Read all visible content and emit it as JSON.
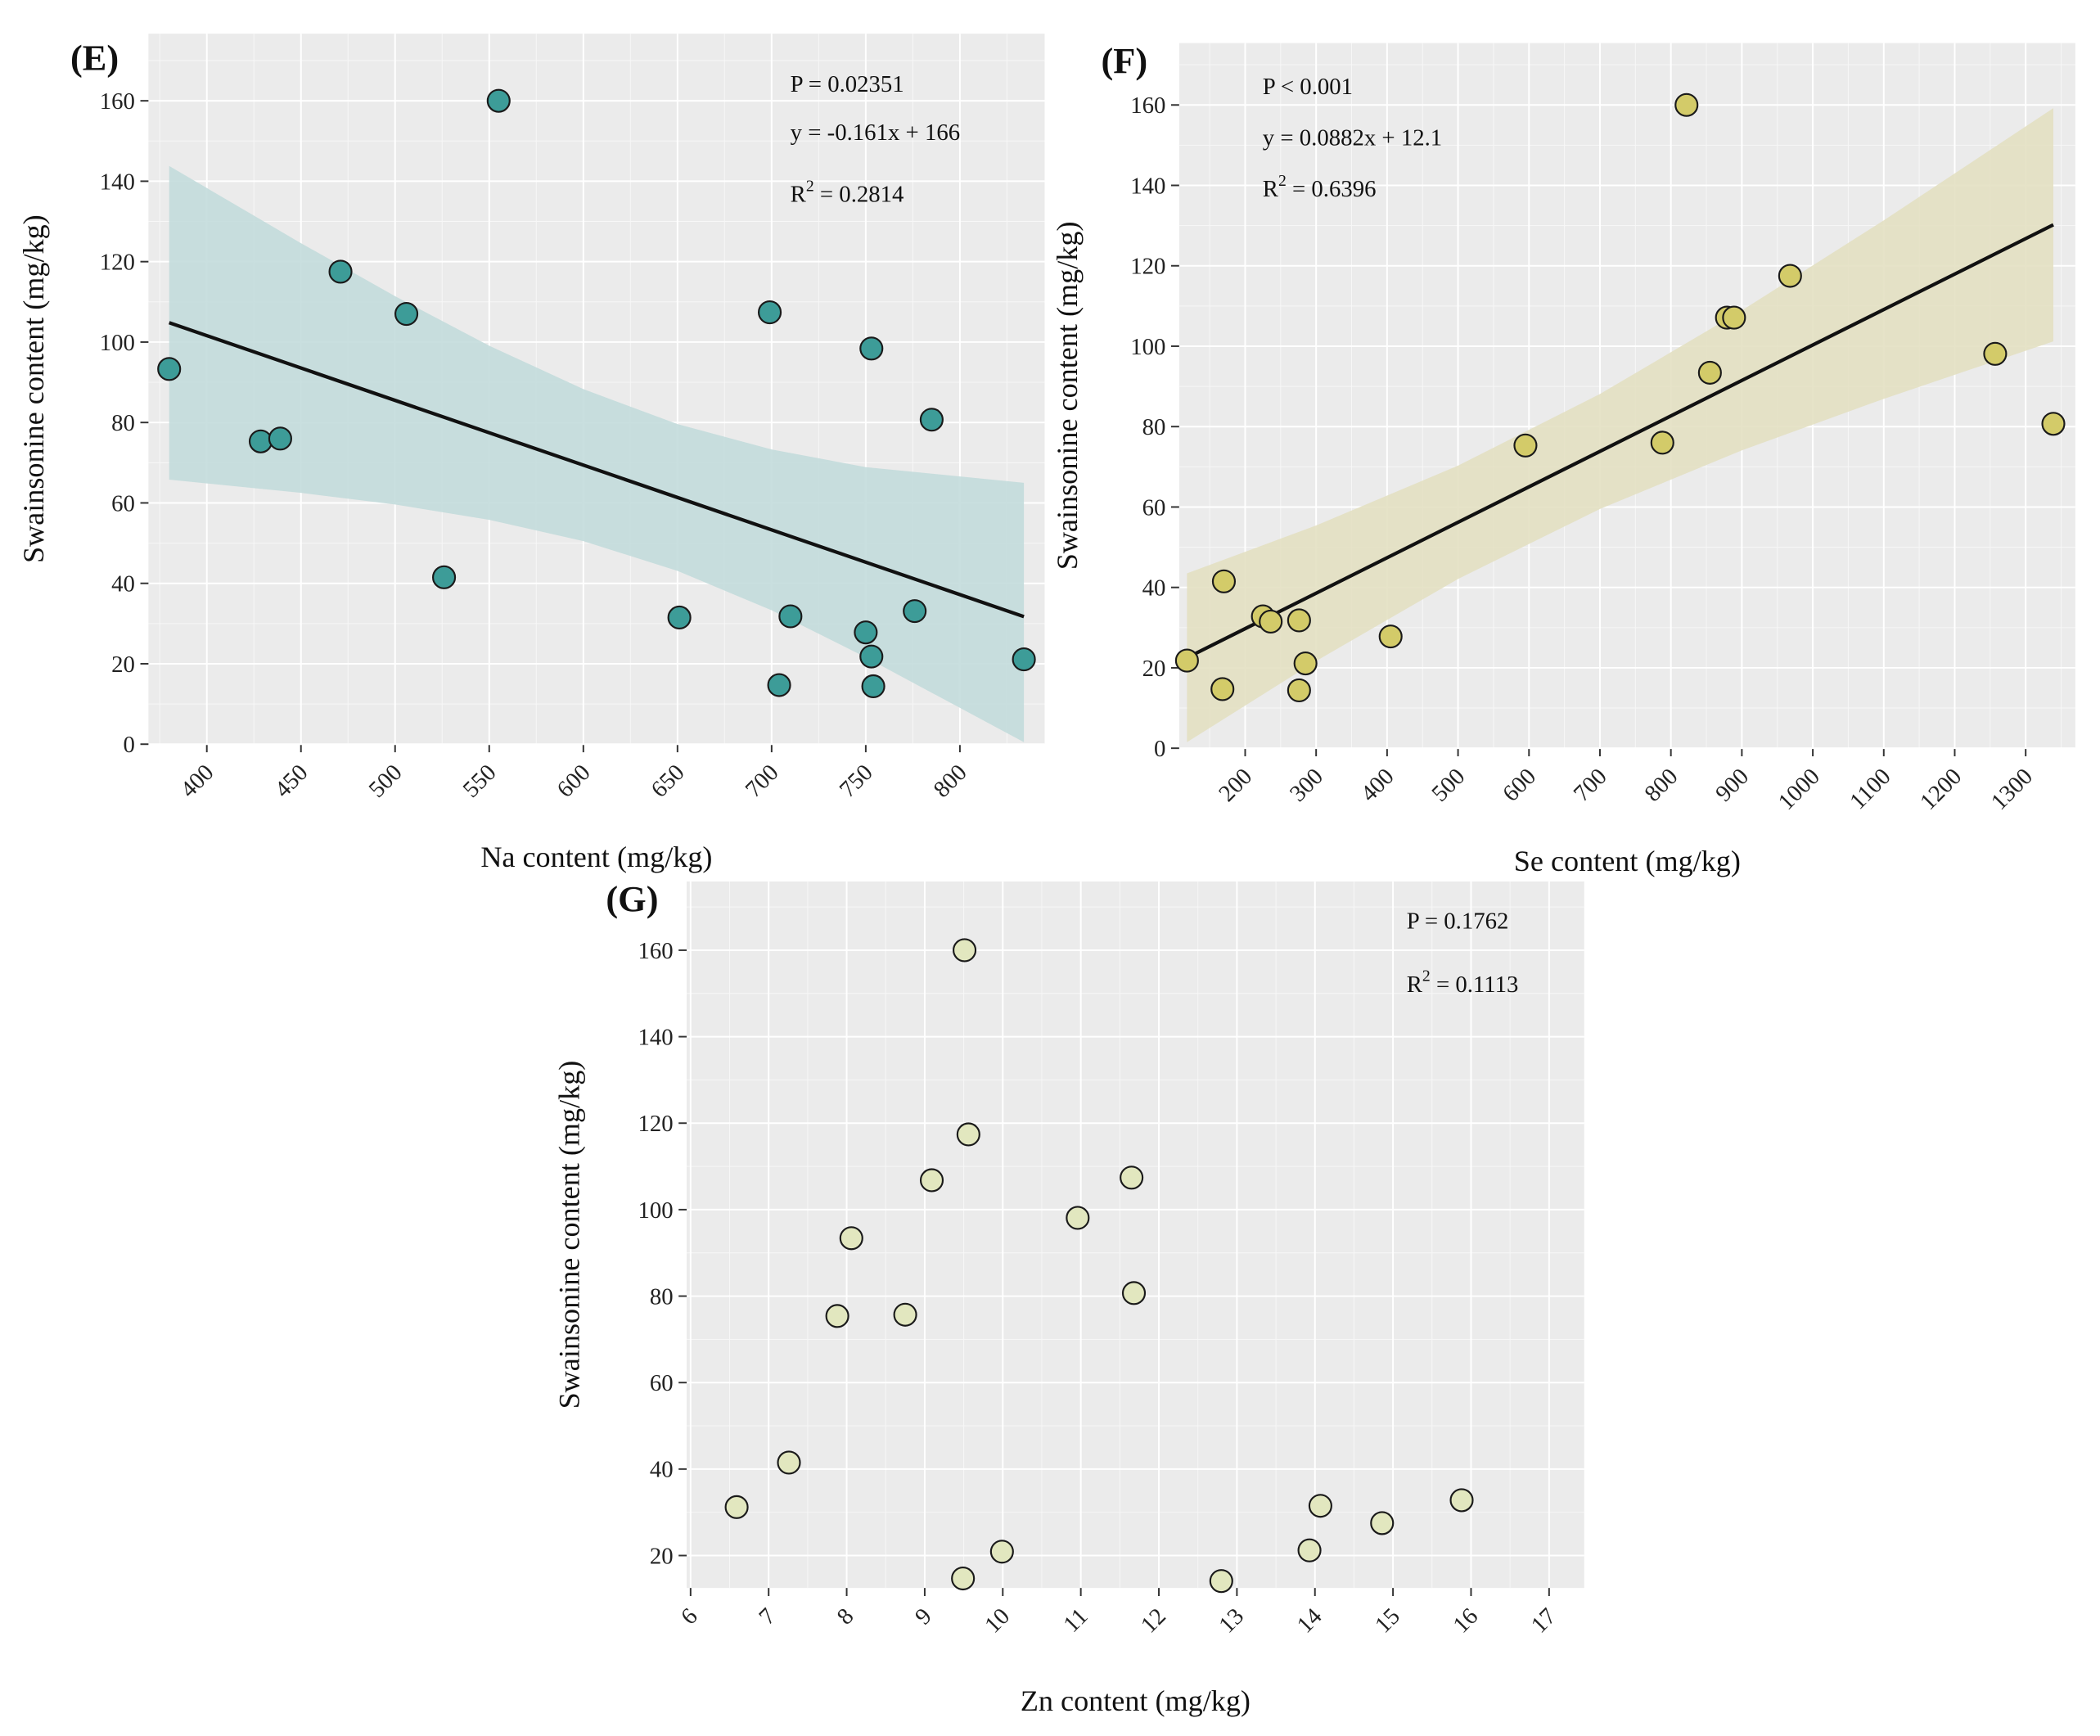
{
  "chart_data": [
    {
      "panel_label": "(E)",
      "type": "scatter",
      "xlabel": "Na content (mg/kg)",
      "ylabel": "Swainsonine content (mg/kg)",
      "xlim": [
        369,
        845
      ],
      "ylim": [
        0,
        176.7
      ],
      "xticks": [
        400,
        450,
        500,
        550,
        600,
        650,
        700,
        750,
        800
      ],
      "yticks": [
        0,
        20,
        40,
        60,
        80,
        100,
        120,
        140,
        160
      ],
      "grid": true,
      "point_color": "#3d9c98",
      "band_color": "#c3dcdb",
      "annotations": {
        "p": "P = 0.02351",
        "equation": "y = -0.161x + 166",
        "r2_label": "R",
        "r2_sup": "2",
        "r2_value": " = 0.2814"
      },
      "fit": {
        "slope": -0.161,
        "intercept": 166,
        "x_range": [
          380,
          834
        ]
      },
      "ci_band": {
        "x": [
          380,
          450,
          500,
          550,
          600,
          650,
          700,
          750,
          834
        ],
        "lower": [
          65.8,
          62.5,
          59.6,
          55.8,
          50.5,
          43.1,
          33.3,
          21.6,
          0.5
        ],
        "upper": [
          143.8,
          124.6,
          111.4,
          99.1,
          88.3,
          79.6,
          73.3,
          68.9,
          65.0
        ]
      },
      "points": [
        [
          380,
          93.3
        ],
        [
          428.6,
          75.3
        ],
        [
          439,
          76
        ],
        [
          471,
          117.5
        ],
        [
          506,
          107
        ],
        [
          526,
          41.5
        ],
        [
          555,
          160
        ],
        [
          651,
          31.5
        ],
        [
          699,
          107.4
        ],
        [
          704,
          14.7
        ],
        [
          710,
          31.8
        ],
        [
          750,
          27.8
        ],
        [
          753,
          98.4
        ],
        [
          753,
          21.8
        ],
        [
          754,
          14.4
        ],
        [
          776,
          33.1
        ],
        [
          785,
          80.7
        ],
        [
          834,
          21.1
        ]
      ]
    },
    {
      "panel_label": "(F)",
      "type": "scatter",
      "xlabel": "Se content (mg/kg)",
      "ylabel": "Swainsonine content (mg/kg)",
      "xlim": [
        107,
        1370
      ],
      "ylim": [
        0,
        175.4
      ],
      "xticks": [
        200,
        300,
        400,
        500,
        600,
        700,
        800,
        900,
        1000,
        1100,
        1200,
        1300
      ],
      "yticks": [
        0,
        20,
        40,
        60,
        80,
        100,
        120,
        140,
        160
      ],
      "grid": true,
      "point_color": "#d3cb69",
      "band_color": "#e3e0c2",
      "annotations": {
        "p": "P < 0.001",
        "equation": "y = 0.0882x + 12.1",
        "r2_label": "R",
        "r2_sup": "2",
        "r2_value": " = 0.6396"
      },
      "fit": {
        "slope": 0.0882,
        "intercept": 12.1,
        "x_range": [
          118,
          1339
        ]
      },
      "ci_band": {
        "x": [
          118,
          300,
          500,
          700,
          900,
          1100,
          1339
        ],
        "lower": [
          1.5,
          21.7,
          42.1,
          59.5,
          74.1,
          86.9,
          101.2
        ],
        "upper": [
          43.5,
          55.4,
          70.3,
          88.1,
          108.9,
          131.3,
          159.2
        ]
      },
      "points": [
        [
          118,
          21.8
        ],
        [
          168,
          14.7
        ],
        [
          170,
          41.5
        ],
        [
          225,
          32.8
        ],
        [
          236,
          31.5
        ],
        [
          276,
          31.8
        ],
        [
          276,
          14.4
        ],
        [
          285,
          21.1
        ],
        [
          405,
          27.8
        ],
        [
          595,
          75.3
        ],
        [
          788,
          76
        ],
        [
          822,
          160
        ],
        [
          855,
          93.4
        ],
        [
          879,
          107.1
        ],
        [
          889,
          107.1
        ],
        [
          968,
          117.5
        ],
        [
          1257,
          98.1
        ],
        [
          1339,
          80.7
        ]
      ]
    },
    {
      "panel_label": "(G)",
      "type": "scatter",
      "xlabel": "Zn content (mg/kg)",
      "ylabel": "Swainsonine content (mg/kg)",
      "xlim": [
        5.95,
        17.45
      ],
      "ylim": [
        12.5,
        175.9
      ],
      "xticks": [
        6,
        7,
        8,
        9,
        10,
        11,
        12,
        13,
        14,
        15,
        16,
        17
      ],
      "yticks": [
        20,
        40,
        60,
        80,
        100,
        120,
        140,
        160
      ],
      "grid": true,
      "point_color": "#e2e7bf",
      "annotations": {
        "p": "P = 0.1762",
        "r2_label": "R",
        "r2_sup": "2",
        "r2_value": " = 0.1113"
      },
      "points": [
        [
          6.59,
          31.2
        ],
        [
          7.26,
          41.5
        ],
        [
          7.88,
          75.4
        ],
        [
          8.06,
          93.4
        ],
        [
          8.75,
          75.7
        ],
        [
          9.09,
          106.8
        ],
        [
          9.51,
          160
        ],
        [
          9.56,
          117.4
        ],
        [
          9.49,
          14.7
        ],
        [
          9.99,
          20.9
        ],
        [
          10.96,
          98.1
        ],
        [
          11.65,
          107.4
        ],
        [
          11.68,
          80.7
        ],
        [
          12.8,
          14.1
        ],
        [
          13.93,
          21.2
        ],
        [
          14.07,
          31.5
        ],
        [
          14.86,
          27.5
        ],
        [
          15.88,
          32.8
        ]
      ]
    }
  ]
}
